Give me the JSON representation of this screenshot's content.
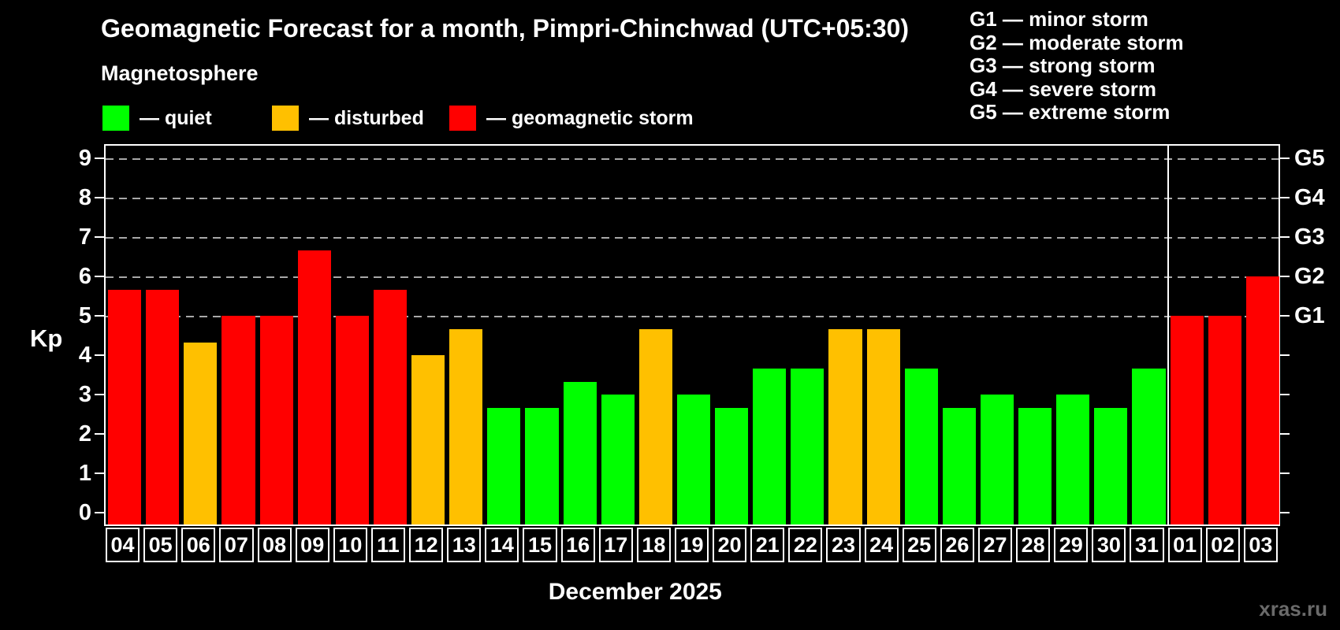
{
  "header": {
    "title": "Geomagnetic Forecast for a month, Pimpri-Chinchwad (UTC+05:30)",
    "subtitle": "Magnetosphere"
  },
  "legend": {
    "items": [
      {
        "id": "quiet",
        "label": "— quiet",
        "color": "#00ff00"
      },
      {
        "id": "disturbed",
        "label": "— disturbed",
        "color": "#ffc000"
      },
      {
        "id": "storm",
        "label": "— geomagnetic storm",
        "color": "#ff0000"
      }
    ]
  },
  "g_scale_legend": {
    "items": [
      "G1 — minor storm",
      "G2 — moderate storm",
      "G3 — strong storm",
      "G4 — severe storm",
      "G5 — extreme storm"
    ]
  },
  "watermark": "xras.ru",
  "chart_data": {
    "type": "bar",
    "title": "Geomagnetic Forecast for a month, Pimpri-Chinchwad (UTC+05:30)",
    "xlabel": "December 2025",
    "ylabel": "Kp",
    "ylim": [
      0,
      9
    ],
    "y_ticks": [
      0,
      1,
      2,
      3,
      4,
      5,
      6,
      7,
      8,
      9
    ],
    "gridlines_at_kp": [
      5,
      6,
      7,
      8,
      9
    ],
    "right_axis_labels": {
      "5": "G1",
      "6": "G2",
      "7": "G3",
      "8": "G4",
      "9": "G5"
    },
    "grid": "dashed horizontal lines at storm levels Kp 5-9 only",
    "legend_position": "top-left",
    "month_separator_after_index": 27,
    "categories": [
      "04",
      "05",
      "06",
      "07",
      "08",
      "09",
      "10",
      "11",
      "12",
      "13",
      "14",
      "15",
      "16",
      "17",
      "18",
      "19",
      "20",
      "21",
      "22",
      "23",
      "24",
      "25",
      "26",
      "27",
      "28",
      "29",
      "30",
      "31",
      "01",
      "02",
      "03"
    ],
    "values": [
      5.67,
      5.67,
      4.33,
      5,
      5,
      6.67,
      5,
      5.67,
      4,
      4.67,
      2.67,
      2.67,
      3.33,
      3,
      4.67,
      3,
      2.67,
      3.67,
      3.67,
      4.67,
      4.67,
      3.67,
      2.67,
      3,
      2.67,
      3,
      2.67,
      3.67,
      5,
      5,
      6
    ],
    "status": [
      "storm",
      "storm",
      "disturbed",
      "storm",
      "storm",
      "storm",
      "storm",
      "storm",
      "disturbed",
      "disturbed",
      "quiet",
      "quiet",
      "quiet",
      "quiet",
      "disturbed",
      "quiet",
      "quiet",
      "quiet",
      "quiet",
      "disturbed",
      "disturbed",
      "quiet",
      "quiet",
      "quiet",
      "quiet",
      "quiet",
      "quiet",
      "quiet",
      "storm",
      "storm",
      "storm"
    ],
    "colors": {
      "quiet": "#00ff00",
      "disturbed": "#ffc000",
      "storm": "#ff0000"
    }
  }
}
